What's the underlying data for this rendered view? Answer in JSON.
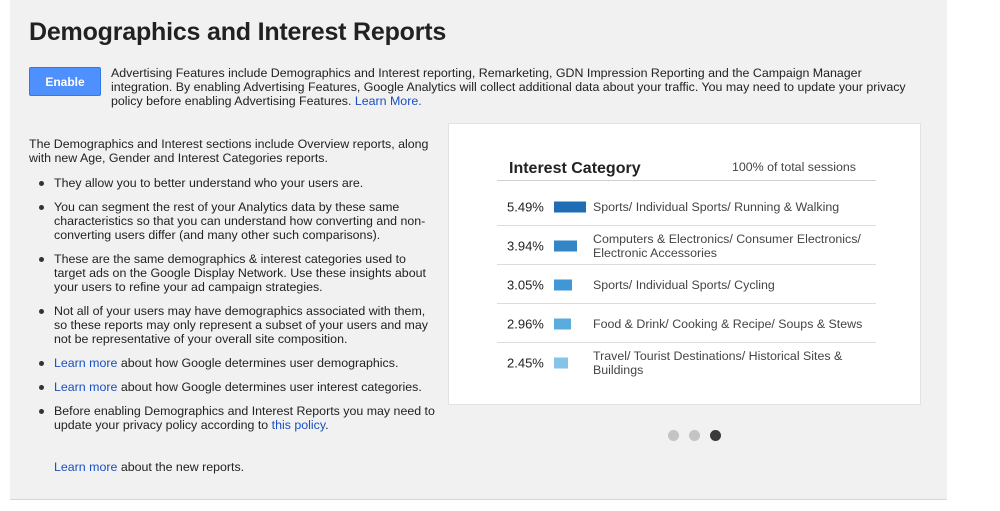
{
  "header": {
    "title": "Demographics and Interest Reports",
    "enable_label": "Enable",
    "description": "Advertising Features include Demographics and Interest reporting, Remarketing, GDN Impression Reporting and the Campaign Manager integration. By enabling Advertising Features, Google Analytics will collect additional data about your traffic. You may need to update your privacy policy before enabling Advertising Features.",
    "description_link": "Learn More."
  },
  "info": {
    "intro": "The Demographics and Interest sections include Overview reports, along with new Age, Gender and Interest Categories reports.",
    "bullets": [
      {
        "text": "They allow you to better understand who your users are."
      },
      {
        "text": "You can segment the rest of your Analytics data by these same characteristics so that you can understand how converting and non-converting users differ (and many other such comparisons)."
      },
      {
        "text": "These are the same demographics & interest categories used to target ads on the Google Display Network. Use these insights about your users to refine your ad campaign strategies."
      },
      {
        "text": "Not all of your users may have demographics associated with them, so these reports may only represent a subset of your users and may not be representative of your overall site composition."
      },
      {
        "link": "Learn more",
        "text": " about how Google determines user demographics."
      },
      {
        "link": "Learn more",
        "text": " about how Google determines user interest categories."
      },
      {
        "text": "Before enabling Demographics and Interest Reports you may need to update your privacy policy according to ",
        "link": "this policy",
        "after": "."
      }
    ],
    "footer_link": "Learn more",
    "footer_text": " about the new reports."
  },
  "card": {
    "title": "Interest Category",
    "total": "100% of total sessions",
    "rows": [
      {
        "pct": "5.49%",
        "share": 1.0,
        "color": "#1f6db4",
        "label": "Sports/ Individual Sports/ Running & Walking"
      },
      {
        "pct": "3.94%",
        "share": 0.72,
        "color": "#3385c6",
        "label": "Computers & Electronics/ Consumer Electronics/ Electronic Accessories"
      },
      {
        "pct": "3.05%",
        "share": 0.56,
        "color": "#3f97d6",
        "label": "Sports/ Individual Sports/ Cycling"
      },
      {
        "pct": "2.96%",
        "share": 0.54,
        "color": "#5aabde",
        "label": "Food & Drink/ Cooking & Recipe/ Soups & Stews"
      },
      {
        "pct": "2.45%",
        "share": 0.45,
        "color": "#86c3e8",
        "label": "Travel/ Tourist Destinations/ Historical Sites & Buildings"
      }
    ]
  },
  "pager": {
    "count": 3,
    "active": 3
  }
}
